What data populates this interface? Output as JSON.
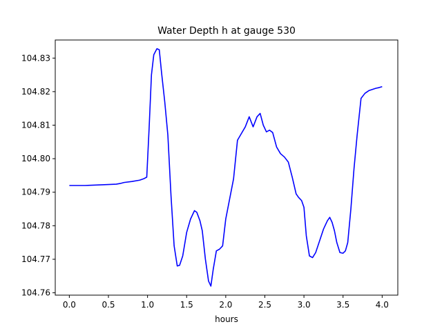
{
  "chart_data": {
    "type": "line",
    "title": "Water Depth h at gauge 530",
    "xlabel": "hours",
    "ylabel": "",
    "xlim": [
      -0.18,
      4.2
    ],
    "ylim": [
      104.7593,
      104.8354
    ],
    "xticks": [
      0.0,
      0.5,
      1.0,
      1.5,
      2.0,
      2.5,
      3.0,
      3.5,
      4.0
    ],
    "xtick_labels": [
      "0.0",
      "0.5",
      "1.0",
      "1.5",
      "2.0",
      "2.5",
      "3.0",
      "3.5",
      "4.0"
    ],
    "yticks": [
      104.76,
      104.77,
      104.78,
      104.79,
      104.8,
      104.81,
      104.82,
      104.83
    ],
    "ytick_labels": [
      "104.76",
      "104.77",
      "104.78",
      "104.79",
      "104.80",
      "104.81",
      "104.82",
      "104.83"
    ],
    "grid": false,
    "series": [
      {
        "color": "#0000ff",
        "x": [
          0.0,
          0.2,
          0.4,
          0.6,
          0.65,
          0.7,
          0.8,
          0.9,
          0.95,
          0.99,
          1.02,
          1.05,
          1.08,
          1.12,
          1.15,
          1.18,
          1.22,
          1.26,
          1.3,
          1.34,
          1.38,
          1.41,
          1.45,
          1.5,
          1.55,
          1.6,
          1.63,
          1.67,
          1.7,
          1.74,
          1.78,
          1.81,
          1.84,
          1.88,
          1.92,
          1.96,
          2.0,
          2.05,
          2.1,
          2.15,
          2.2,
          2.25,
          2.3,
          2.35,
          2.4,
          2.44,
          2.48,
          2.52,
          2.56,
          2.6,
          2.65,
          2.7,
          2.75,
          2.8,
          2.85,
          2.9,
          2.93,
          2.97,
          3.0,
          3.03,
          3.07,
          3.11,
          3.15,
          3.2,
          3.25,
          3.3,
          3.33,
          3.36,
          3.39,
          3.42,
          3.46,
          3.5,
          3.53,
          3.56,
          3.6,
          3.64,
          3.68,
          3.73,
          3.78,
          3.83,
          3.88,
          3.92,
          3.96,
          4.0
        ],
        "y": [
          104.792,
          104.792,
          104.7922,
          104.7924,
          104.7926,
          104.7929,
          104.7932,
          104.7936,
          104.794,
          104.7945,
          104.809,
          104.825,
          104.831,
          104.8328,
          104.8325,
          104.8255,
          104.817,
          104.807,
          104.789,
          104.774,
          104.768,
          104.7682,
          104.771,
          104.778,
          104.782,
          104.7845,
          104.784,
          104.7815,
          104.7785,
          104.77,
          104.7635,
          104.762,
          104.767,
          104.7725,
          104.773,
          104.774,
          104.782,
          104.788,
          104.794,
          104.8055,
          104.8075,
          104.8095,
          104.8125,
          104.8095,
          104.8125,
          104.8135,
          104.81,
          104.808,
          104.8085,
          104.8078,
          104.8035,
          104.8015,
          104.8005,
          104.799,
          104.7945,
          104.7895,
          104.7885,
          104.7875,
          104.7855,
          104.777,
          104.771,
          104.7705,
          104.772,
          104.7755,
          104.779,
          104.7815,
          104.7825,
          104.781,
          104.7785,
          104.775,
          104.772,
          104.7718,
          104.7725,
          104.775,
          104.785,
          104.797,
          104.807,
          104.818,
          104.8195,
          104.8203,
          104.8207,
          104.821,
          104.8212,
          104.8215
        ]
      }
    ]
  }
}
